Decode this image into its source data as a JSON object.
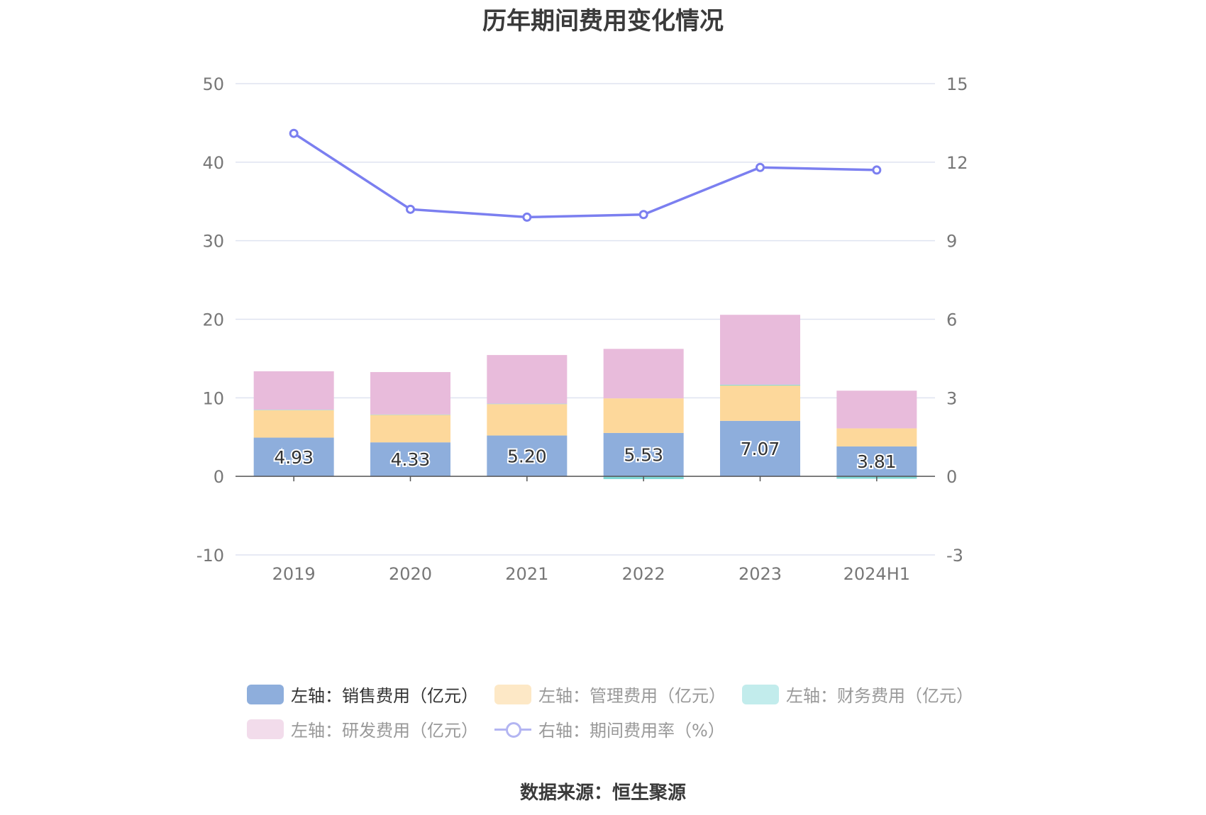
{
  "title": "历年期间费用变化情况",
  "source": "数据来源：恒生聚源",
  "chart_data": {
    "type": "bar",
    "stacked": true,
    "categories": [
      "2019",
      "2020",
      "2021",
      "2022",
      "2023",
      "2024H1"
    ],
    "left_axis": {
      "ylim": [
        -10,
        50
      ],
      "ticks": [
        -10,
        0,
        10,
        20,
        30,
        40,
        50
      ]
    },
    "right_axis": {
      "ylim": [
        -3,
        15
      ],
      "ticks": [
        -3,
        0,
        3,
        6,
        9,
        12,
        15
      ]
    },
    "grid": true,
    "legend_position": "bottom",
    "series": [
      {
        "name": "左轴：销售费用（亿元）",
        "axis": "left",
        "type": "bar",
        "color": "#8eaedc",
        "values": [
          4.93,
          4.33,
          5.2,
          5.53,
          7.07,
          3.81
        ],
        "labels_shown": true
      },
      {
        "name": "左轴：管理费用（亿元）",
        "axis": "left",
        "type": "bar",
        "color": "#fdd89b",
        "values": [
          3.5,
          3.5,
          4.0,
          4.4,
          4.5,
          2.3
        ]
      },
      {
        "name": "左轴：财务费用（亿元）",
        "axis": "left",
        "type": "bar",
        "color": "#80d8d6",
        "values": [
          0.05,
          0.05,
          0.05,
          -0.35,
          0.1,
          -0.3
        ]
      },
      {
        "name": "左轴：研发费用（亿元）",
        "axis": "left",
        "type": "bar",
        "color": "#e8bbdb",
        "values": [
          4.9,
          5.4,
          6.2,
          6.3,
          8.9,
          4.8
        ]
      },
      {
        "name": "右轴：期间费用率（%）",
        "axis": "right",
        "type": "line",
        "color": "#7b7ff0",
        "values": [
          13.1,
          10.2,
          9.9,
          10.0,
          11.8,
          11.7
        ]
      }
    ]
  },
  "legend": [
    {
      "label": "左轴：销售费用（亿元）",
      "color": "#8eaedc",
      "kind": "bar",
      "text_color": "#333333"
    },
    {
      "label": "左轴：管理费用（亿元）",
      "color": "#fde8c6",
      "kind": "bar",
      "text_color": "#999999"
    },
    {
      "label": "左轴：财务费用（亿元）",
      "color": "#c2ecec",
      "kind": "bar",
      "text_color": "#999999"
    },
    {
      "label": "左轴：研发费用（亿元）",
      "color": "#f2dceb",
      "kind": "bar",
      "text_color": "#999999"
    },
    {
      "label": "右轴：期间费用率（%）",
      "color": "#b3b5f2",
      "kind": "line",
      "text_color": "#999999"
    }
  ]
}
